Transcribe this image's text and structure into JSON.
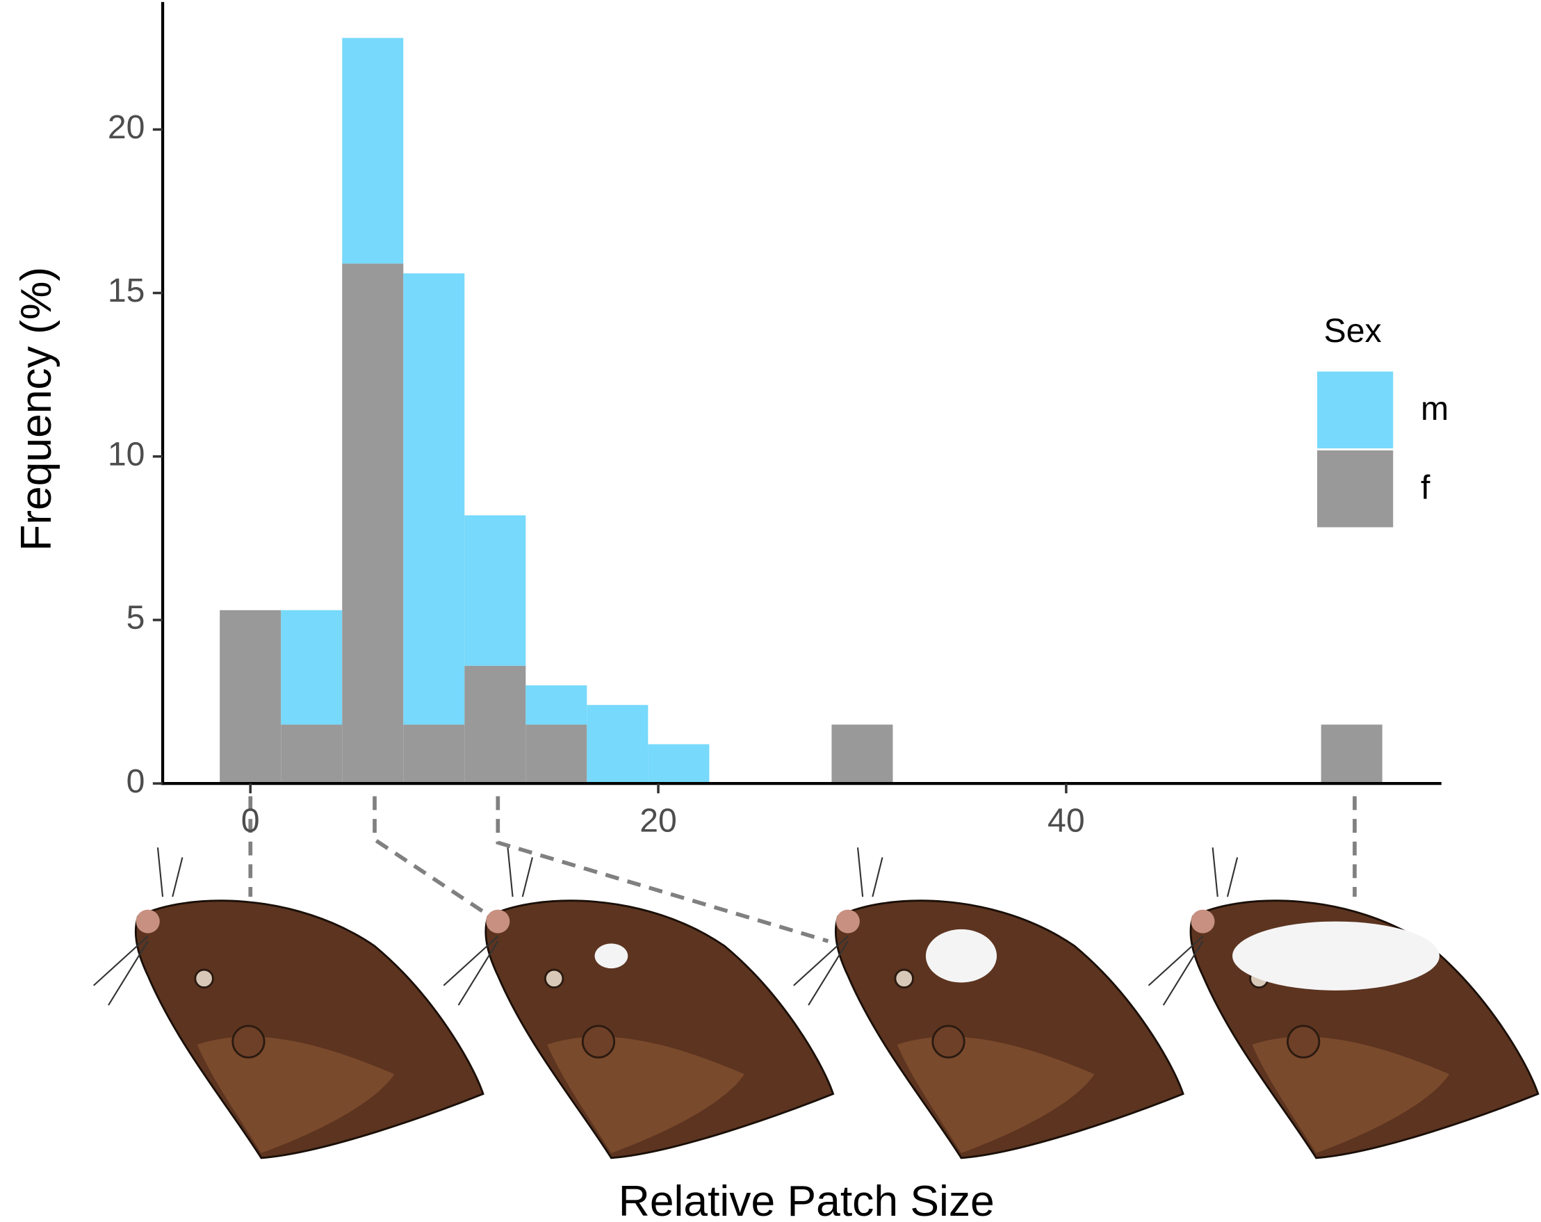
{
  "chart_data": {
    "type": "histogram",
    "x_label": "Relative Patch Size",
    "y_label": "Frequency (%)",
    "legend_title": "Sex",
    "legend_position": "right",
    "bins": [
      -1.5,
      1.5,
      4.5,
      7.5,
      10.5,
      13.5,
      16.5,
      19.5,
      22.5,
      25.5,
      28.5,
      31.5,
      34.5,
      37.5,
      40.5,
      43.5,
      46.5,
      49.5,
      52.5,
      55.5
    ],
    "series": [
      {
        "name": "m",
        "color": "#77d9fb",
        "values": [
          0,
          3.5,
          6.9,
          13.8,
          4.6,
          1.2,
          2.4,
          1.2,
          0,
          0,
          0,
          0,
          0,
          0,
          0,
          0,
          0,
          0,
          0
        ]
      },
      {
        "name": "f",
        "color": "#999999",
        "values": [
          5.3,
          1.8,
          15.9,
          1.8,
          3.6,
          1.8,
          0,
          0,
          0,
          0,
          1.8,
          0,
          0,
          0,
          0,
          0,
          0,
          0,
          1.8
        ]
      }
    ],
    "xlim": [
      -4.3,
      58.4
    ],
    "ylim": [
      0,
      23.9
    ],
    "xticks": [
      0,
      20,
      40
    ],
    "yticks": [
      0,
      5,
      10,
      15,
      20
    ]
  }
}
